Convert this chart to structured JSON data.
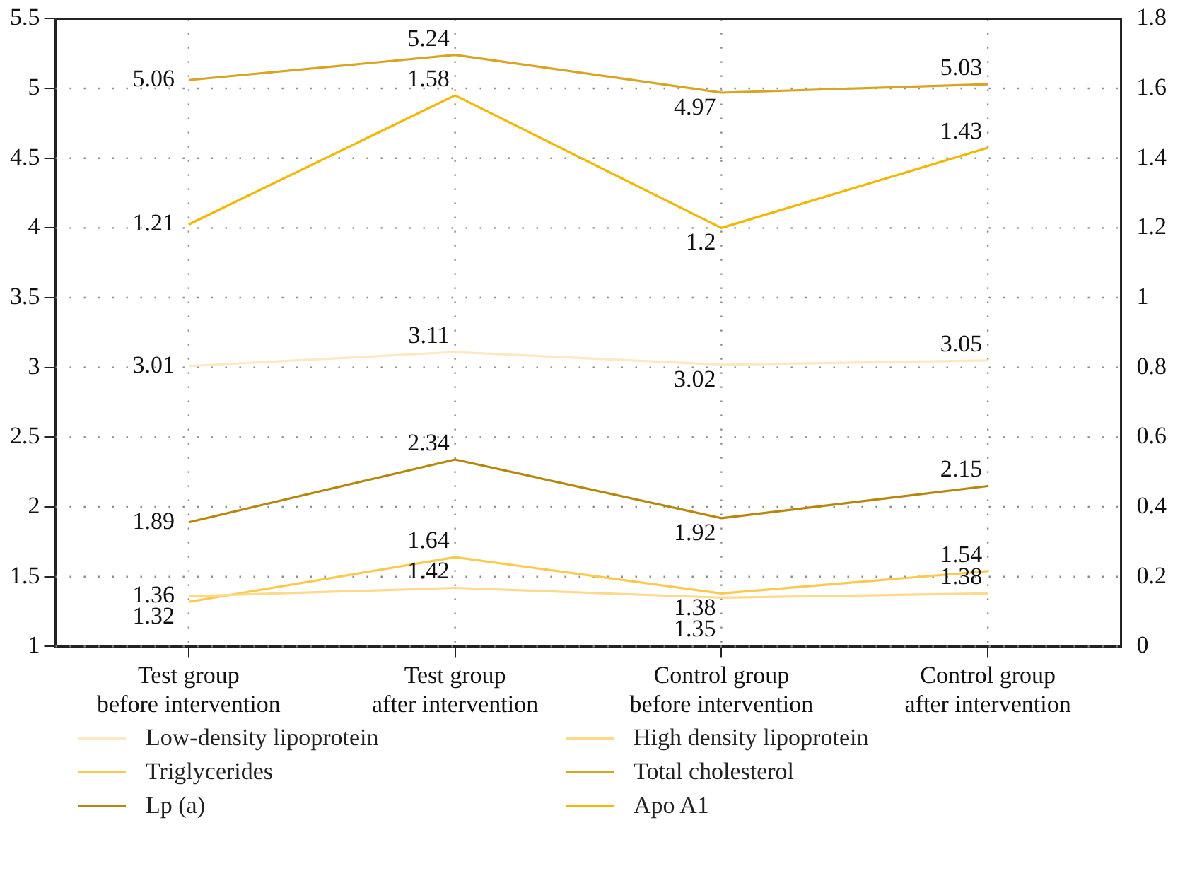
{
  "chart_data": {
    "type": "line",
    "categories": [
      "Test group before intervention",
      "Test group after intervention",
      "Control group before intervention",
      "Control group after intervention"
    ],
    "series": [
      {
        "name": "Low-density lipoprotein",
        "color": "#fde8c2",
        "values": [
          3.01,
          3.11,
          3.02,
          3.05
        ]
      },
      {
        "name": "High density lipoprotein",
        "color": "#fdd98c",
        "values": [
          1.36,
          1.42,
          1.35,
          1.38
        ]
      },
      {
        "name": "Triglycerides",
        "color": "#fcc94c",
        "values": [
          1.32,
          1.64,
          1.38,
          1.54
        ]
      },
      {
        "name": "Total cholesterol",
        "color": "#d9a423",
        "values": [
          5.06,
          5.24,
          4.97,
          5.03
        ]
      },
      {
        "name": "Lp (a)",
        "color": "#b8860b",
        "values": [
          1.89,
          2.34,
          1.92,
          2.15
        ]
      },
      {
        "name": "Apo A1",
        "color": "#f2b705",
        "values": [
          1.21,
          1.58,
          1.2,
          1.43
        ],
        "axis": "y2"
      }
    ],
    "ylim": [
      1,
      5.5
    ],
    "yticks": [
      1,
      1.5,
      2,
      2.5,
      3,
      3.5,
      4,
      4.5,
      5,
      5.5
    ],
    "y2lim": [
      0,
      1.8
    ],
    "y2ticks": [
      0,
      0.2,
      0.4,
      0.6,
      0.8,
      1,
      1.2,
      1.4,
      1.6,
      1.8
    ],
    "data_labels": true,
    "grid": true,
    "legend": "bottom",
    "marker": "none",
    "line_style": "solid"
  }
}
